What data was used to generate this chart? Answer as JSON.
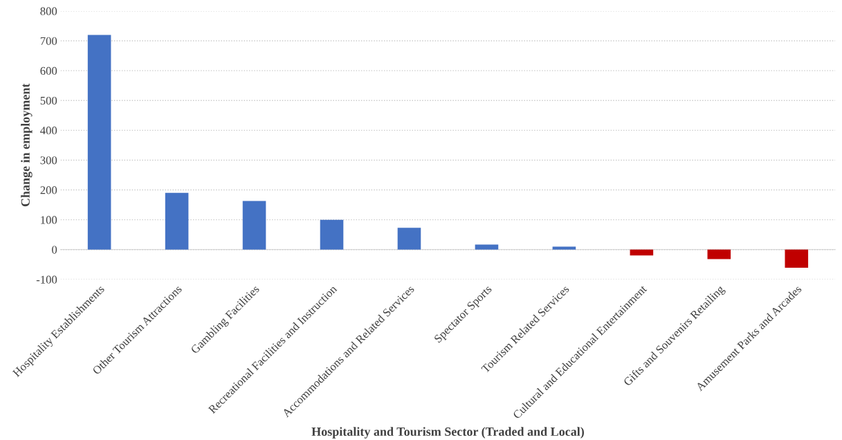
{
  "chart_data": {
    "type": "bar",
    "xlabel": "Hospitality and Tourism Sector (Traded and Local)",
    "ylabel": "Change in employment",
    "categories": [
      "Hospitality Establishments",
      "Other Tourism Attractions",
      "Gambling Facilities",
      "Recreational Facilities and Instruction",
      "Accommodations and Related Services",
      "Spectator Sports",
      "Tourism Related Services",
      "Cultural and Educational Entertainment",
      "Gifts and Souvenirs Retailing",
      "Amusement Parks and Arcades"
    ],
    "values": [
      720,
      190,
      163,
      100,
      73,
      17,
      10,
      -20,
      -32,
      -61
    ],
    "colors": [
      "#4472c4",
      "#4472c4",
      "#4472c4",
      "#4472c4",
      "#4472c4",
      "#4472c4",
      "#4472c4",
      "#c00000",
      "#c00000",
      "#c00000"
    ],
    "ylim": [
      -100,
      800
    ],
    "yticks": [
      -100,
      0,
      100,
      200,
      300,
      400,
      500,
      600,
      700,
      800
    ],
    "grid": "y"
  }
}
